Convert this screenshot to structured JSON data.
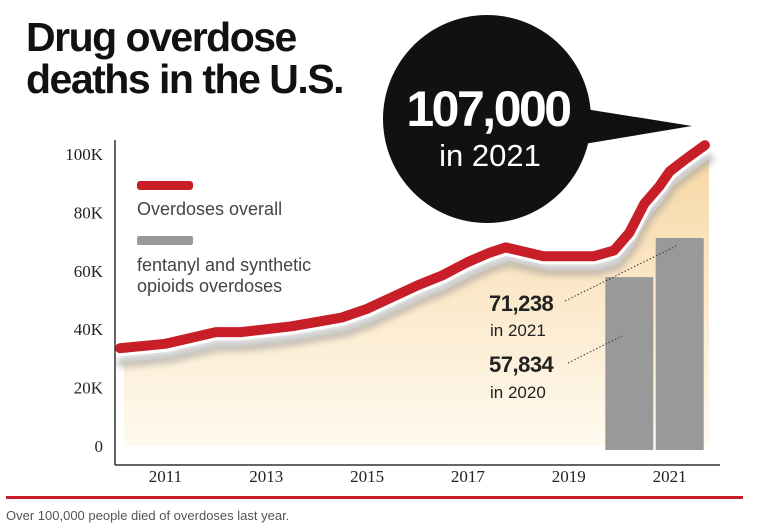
{
  "title_lines": [
    "Drug overdose",
    "deaths in the U.S."
  ],
  "caption": "Over 100,000 people died of overdoses last year.",
  "callout": {
    "value": "107,000",
    "label": "in 2021"
  },
  "colors": {
    "overall": "#c81e28",
    "fentanyl": "#999999",
    "fill_top": "#f7d8a6",
    "fill_bottom": "#fffaf0",
    "bubble": "#111111",
    "rule": "#c81e28"
  },
  "chart_data": {
    "type": "line",
    "title": "Drug overdose deaths in the U.S.",
    "xlabel": "",
    "ylabel": "",
    "xlim": [
      2010.0,
      2022.0
    ],
    "ylim": [
      0,
      100000
    ],
    "y_tick_values": [
      0,
      20000,
      40000,
      60000,
      80000,
      100000
    ],
    "y_tick_labels": [
      "0",
      "20K",
      "40K",
      "60K",
      "80K",
      "100K"
    ],
    "x_tick_values": [
      2011,
      2013,
      2015,
      2017,
      2019,
      2021
    ],
    "x_tick_labels": [
      "2011",
      "2013",
      "2015",
      "2017",
      "2019",
      "2021"
    ],
    "legend_position": "top-left",
    "grid": false,
    "series": [
      {
        "name": "Overdoses overall",
        "type": "line",
        "x": [
          2010.1,
          2011.0,
          2011.5,
          2012.0,
          2012.5,
          2013.0,
          2013.5,
          2014.0,
          2014.5,
          2015.0,
          2015.5,
          2016.0,
          2016.5,
          2017.0,
          2017.4,
          2017.75,
          2018.0,
          2018.5,
          2019.0,
          2019.5,
          2019.9,
          2020.2,
          2020.5,
          2020.8,
          2021.0,
          2021.3,
          2021.7
        ],
        "values": [
          33500,
          35000,
          37000,
          39000,
          39000,
          40000,
          41000,
          42500,
          44000,
          47000,
          51000,
          55000,
          58500,
          63000,
          66000,
          68000,
          67000,
          65000,
          65000,
          65000,
          67000,
          73000,
          83000,
          89000,
          94000,
          98000,
          103000
        ]
      },
      {
        "name": "fentanyl and synthetic opioids overdoses",
        "type": "bar",
        "x": [
          2020,
          2021
        ],
        "values": [
          57834,
          71238
        ]
      }
    ],
    "annotations": [
      {
        "value": "71,238",
        "label": "in 2021"
      },
      {
        "value": "57,834",
        "label": "in 2020"
      }
    ],
    "callout": {
      "value": "107,000",
      "label": "in 2021"
    }
  }
}
